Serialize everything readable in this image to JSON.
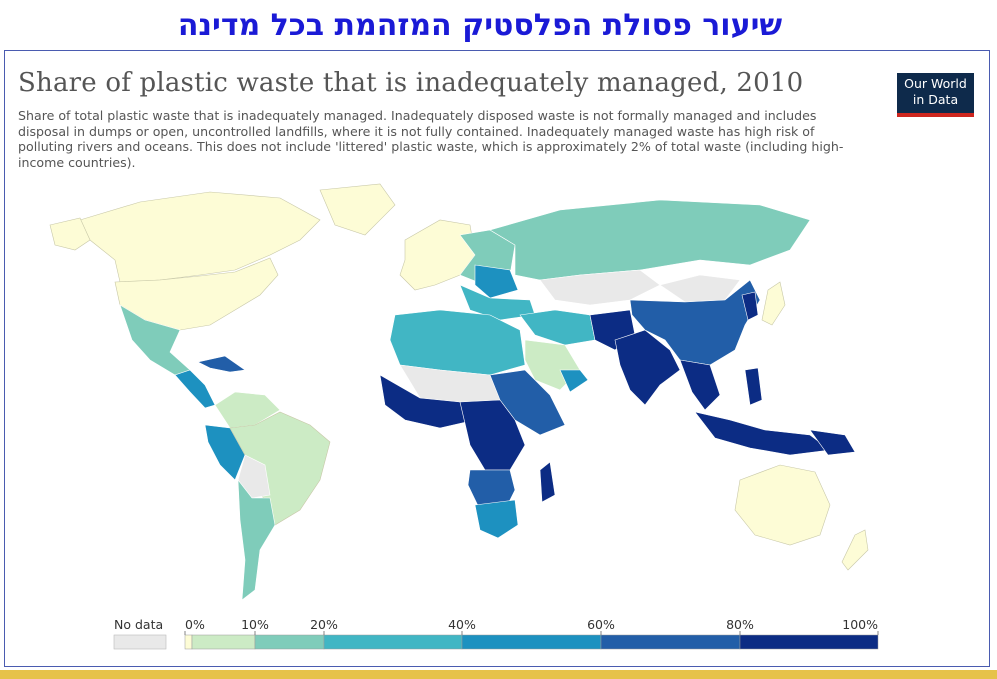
{
  "header": {
    "title": "שיעור פסולת הפלסטיק המזהמת בכל מדינה"
  },
  "chart": {
    "title": "Share of plastic waste that is inadequately managed, 2010",
    "subtitle": "Share of total plastic waste that is inadequately managed. Inadequately disposed waste is not formally managed and includes disposal in dumps or open, uncontrolled landfills, where it is not fully contained. Inadequately managed waste has high risk of polluting rivers and oceans. This does not include 'littered' plastic waste, which is approximately 2% of total waste (including high-income countries).",
    "logo_line1": "Our World",
    "logo_line2": "in Data"
  },
  "legend": {
    "no_data_label": "No data",
    "no_data_color": "#e9e9e9",
    "ticks": [
      {
        "label": "0%",
        "value": 0
      },
      {
        "label": "10%",
        "value": 10
      },
      {
        "label": "20%",
        "value": 20
      },
      {
        "label": "40%",
        "value": 40
      },
      {
        "label": "60%",
        "value": 60
      },
      {
        "label": "80%",
        "value": 80
      },
      {
        "label": "100%",
        "value": 100
      }
    ],
    "bins": [
      {
        "from": 0,
        "to": 1,
        "color": "#fdfcd6"
      },
      {
        "from": 1,
        "to": 10,
        "color": "#ccebc5"
      },
      {
        "from": 10,
        "to": 20,
        "color": "#7fccba"
      },
      {
        "from": 20,
        "to": 40,
        "color": "#41b6c4"
      },
      {
        "from": 40,
        "to": 60,
        "color": "#1d91c0"
      },
      {
        "from": 60,
        "to": 80,
        "color": "#225ea8"
      },
      {
        "from": 80,
        "to": 100,
        "color": "#0c2c84"
      }
    ]
  },
  "colors": {
    "ocean": "#ffffff",
    "border": "#ffffff",
    "header_title": "#1a1ad6",
    "frame_border": "#4a5bb0",
    "bottom_bar": "#e6c24a"
  }
}
